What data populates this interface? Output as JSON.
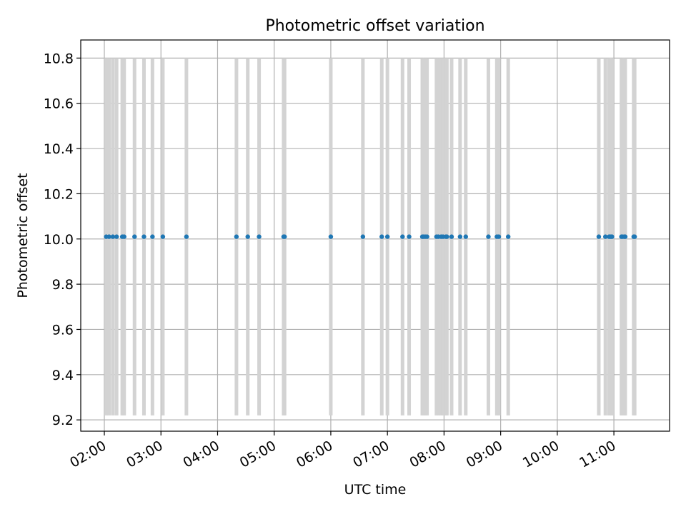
{
  "chart_data": {
    "type": "scatter",
    "title": "Photometric offset variation",
    "xlabel": "UTC time",
    "ylabel": "Photometric offset",
    "x_ticks": [
      "02:00",
      "03:00",
      "04:00",
      "05:00",
      "06:00",
      "07:00",
      "08:00",
      "09:00",
      "10:00",
      "11:00"
    ],
    "y_ticks": [
      "9.2",
      "9.4",
      "9.6",
      "9.8",
      "10.0",
      "10.2",
      "10.4",
      "10.6",
      "10.8"
    ],
    "xlim": [
      "01:35",
      "11:59"
    ],
    "ylim": [
      9.15,
      10.88
    ],
    "grid": true,
    "error_range": [
      9.22,
      10.8
    ],
    "series": [
      {
        "name": "",
        "marker": "point",
        "y": 10.01,
        "x": [
          "02:02",
          "02:05",
          "02:09",
          "02:13",
          "02:19",
          "02:21",
          "02:32",
          "02:42",
          "02:51",
          "03:02",
          "03:27",
          "04:20",
          "04:32",
          "04:44",
          "05:10",
          "05:11",
          "06:00",
          "06:34",
          "06:54",
          "07:00",
          "07:16",
          "07:23",
          "07:37",
          "07:38",
          "07:40",
          "07:42",
          "07:52",
          "07:54",
          "07:57",
          "07:59",
          "08:02",
          "08:03",
          "08:08",
          "08:17",
          "08:23",
          "08:47",
          "08:56",
          "08:58",
          "09:08",
          "10:44",
          "10:51",
          "10:55",
          "10:56",
          "10:57",
          "10:58",
          "11:08",
          "11:09",
          "11:11",
          "11:12",
          "11:21",
          "11:22"
        ]
      }
    ]
  },
  "colors": {
    "points": "#1f77b4",
    "error_bars": "#d3d3d3",
    "grid": "#b0b0b0",
    "axes": "#000000"
  }
}
